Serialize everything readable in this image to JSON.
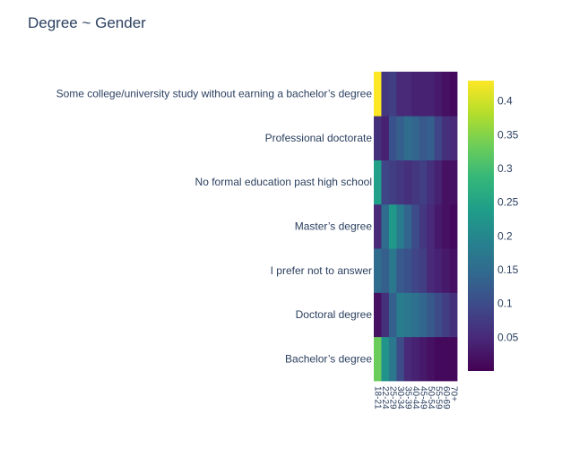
{
  "chart_data": {
    "type": "heatmap",
    "title": "Degree ~ Gender",
    "xlabel": "",
    "ylabel": "",
    "x": [
      "18-21",
      "22-24",
      "25-29",
      "30-34",
      "35-39",
      "40-44",
      "45-49",
      "50-54",
      "55-59",
      "60-69",
      "70+"
    ],
    "y": [
      "Bachelor’s degree",
      "Doctoral degree",
      "I prefer not to answer",
      "Master’s degree",
      "No formal education past high school",
      "Professional doctorate",
      "Some college/university study without earning a bachelor’s degree"
    ],
    "z": [
      [
        0.33,
        0.22,
        0.17,
        0.1,
        0.05,
        0.04,
        0.03,
        0.02,
        0.01,
        0.01,
        0.01
      ],
      [
        0.02,
        0.06,
        0.13,
        0.18,
        0.17,
        0.16,
        0.14,
        0.12,
        0.1,
        0.08,
        0.06
      ],
      [
        0.15,
        0.13,
        0.17,
        0.12,
        0.11,
        0.09,
        0.08,
        0.05,
        0.04,
        0.03,
        0.02
      ],
      [
        0.05,
        0.15,
        0.23,
        0.18,
        0.14,
        0.1,
        0.07,
        0.05,
        0.03,
        0.02,
        0.01
      ],
      [
        0.24,
        0.09,
        0.08,
        0.07,
        0.06,
        0.07,
        0.08,
        0.06,
        0.04,
        0.02,
        0.02
      ],
      [
        0.06,
        0.04,
        0.11,
        0.13,
        0.15,
        0.14,
        0.12,
        0.13,
        0.09,
        0.06,
        0.05
      ],
      [
        0.43,
        0.07,
        0.08,
        0.05,
        0.05,
        0.04,
        0.04,
        0.04,
        0.03,
        0.02,
        0.01
      ]
    ],
    "zlim": [
      0,
      0.43
    ],
    "colorscale": "Viridis",
    "colorbar_ticks": [
      "0.05",
      "0.1",
      "0.15",
      "0.2",
      "0.25",
      "0.3",
      "0.35",
      "0.4"
    ],
    "colorbar_tick_values": [
      0.05,
      0.1,
      0.15,
      0.2,
      0.25,
      0.3,
      0.35,
      0.4
    ],
    "grid": false,
    "legend": "colorbar-right"
  }
}
